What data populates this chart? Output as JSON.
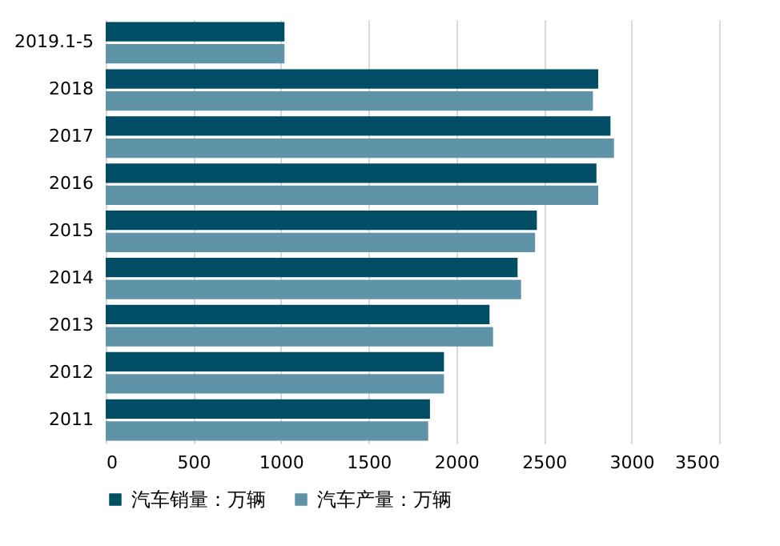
{
  "chart_data": {
    "type": "bar",
    "orientation": "horizontal",
    "categories": [
      "2019.1-5",
      "2018",
      "2017",
      "2016",
      "2015",
      "2014",
      "2013",
      "2012",
      "2011"
    ],
    "series": [
      {
        "name": "汽车销量：万辆",
        "color": "#004e66",
        "values": [
          1020,
          2810,
          2880,
          2800,
          2460,
          2350,
          2190,
          1930,
          1850
        ]
      },
      {
        "name": "汽车产量：万辆",
        "color": "#5f93a8",
        "values": [
          1020,
          2780,
          2900,
          2810,
          2450,
          2370,
          2210,
          1930,
          1840
        ]
      }
    ],
    "xlim": [
      0,
      3500
    ],
    "xticks": [
      0,
      500,
      1000,
      1500,
      2000,
      2500,
      3000,
      3500
    ],
    "grid": "x",
    "legend": "bottom"
  }
}
